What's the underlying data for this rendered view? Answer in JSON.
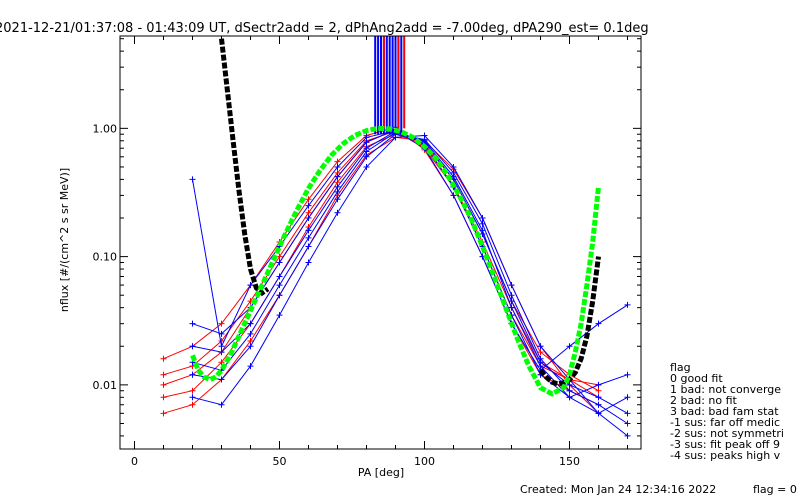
{
  "chart_data": {
    "type": "line",
    "title": "2021-12-21/01:37:08 - 01:43:09 UT, dSectr2add = 2, dPhAng2add = -7.00deg, dPA290_est=   0.1deg",
    "xlabel": "PA [deg]",
    "ylabel": "nflux [#/(cm^2 s sr MeV)]",
    "xlim": [
      -5,
      182
    ],
    "ylim": [
      0.0032,
      5.2
    ],
    "yscale": "log",
    "x_ticks": [
      0,
      50,
      100,
      150
    ],
    "x_tick_labels": [
      "0",
      "50",
      "100",
      "150"
    ],
    "y_ticks": [
      0.01,
      0.1,
      1.0
    ],
    "y_tick_labels": [
      "0.01",
      "0.10",
      "1.00"
    ],
    "colors": {
      "red": "#ff0000",
      "blue": "#0000ff",
      "green": "#00ff00",
      "black": "#000000"
    },
    "red_pa": [
      10,
      20,
      30,
      40,
      50,
      60,
      70,
      80,
      90,
      100,
      110,
      120,
      130,
      140,
      150,
      160
    ],
    "blue_pa": [
      20,
      30,
      40,
      50,
      60,
      70,
      80,
      90,
      100,
      110,
      120,
      130,
      140,
      150,
      160,
      170
    ],
    "red_curves": [
      [
        0.012,
        0.014,
        0.022,
        0.045,
        0.1,
        0.22,
        0.45,
        0.8,
        0.95,
        0.7,
        0.35,
        0.12,
        0.035,
        0.014,
        0.011,
        0.008
      ],
      [
        0.008,
        0.009,
        0.015,
        0.03,
        0.07,
        0.17,
        0.38,
        0.72,
        0.9,
        0.75,
        0.4,
        0.15,
        0.045,
        0.018,
        0.012,
        0.009
      ],
      [
        0.016,
        0.02,
        0.03,
        0.06,
        0.13,
        0.28,
        0.55,
        0.88,
        1.02,
        0.68,
        0.3,
        0.1,
        0.03,
        0.012,
        0.009,
        0.007
      ],
      [
        0.006,
        0.007,
        0.011,
        0.022,
        0.05,
        0.12,
        0.3,
        0.62,
        0.85,
        0.8,
        0.48,
        0.2,
        0.06,
        0.02,
        0.01,
        0.006
      ],
      [
        0.01,
        0.012,
        0.018,
        0.04,
        0.09,
        0.2,
        0.42,
        0.78,
        0.97,
        0.72,
        0.36,
        0.13,
        0.04,
        0.015,
        0.011,
        0.01
      ]
    ],
    "blue_curves": [
      [
        0.02,
        0.018,
        0.03,
        0.07,
        0.16,
        0.35,
        0.7,
        0.95,
        0.78,
        0.4,
        0.15,
        0.045,
        0.015,
        0.01,
        0.008,
        0.006
      ],
      [
        0.012,
        0.011,
        0.02,
        0.05,
        0.12,
        0.28,
        0.6,
        0.9,
        0.82,
        0.45,
        0.18,
        0.05,
        0.016,
        0.009,
        0.007,
        0.005
      ],
      [
        0.03,
        0.025,
        0.04,
        0.09,
        0.2,
        0.42,
        0.78,
        0.98,
        0.75,
        0.35,
        0.12,
        0.035,
        0.012,
        0.008,
        0.01,
        0.012
      ],
      [
        0.008,
        0.007,
        0.014,
        0.035,
        0.09,
        0.22,
        0.5,
        0.85,
        0.88,
        0.5,
        0.2,
        0.06,
        0.02,
        0.011,
        0.006,
        0.004
      ],
      [
        0.4,
        0.02,
        0.06,
        0.12,
        0.25,
        0.5,
        0.85,
        0.96,
        0.7,
        0.3,
        0.1,
        0.03,
        0.013,
        0.02,
        0.03,
        0.042
      ],
      [
        0.015,
        0.013,
        0.025,
        0.06,
        0.14,
        0.32,
        0.66,
        0.93,
        0.8,
        0.42,
        0.16,
        0.04,
        0.014,
        0.008,
        0.006,
        0.008
      ]
    ],
    "green_fit": {
      "pa": [
        20,
        22,
        24,
        26,
        28,
        30,
        33,
        36,
        40,
        44,
        48,
        52,
        56,
        60,
        64,
        68,
        72,
        76,
        80,
        84,
        88,
        92,
        96,
        100,
        104,
        108,
        112,
        116,
        120,
        124,
        128,
        132,
        136,
        140,
        144,
        148,
        150,
        152,
        154,
        156,
        158,
        160
      ],
      "values": [
        0.017,
        0.013,
        0.0115,
        0.011,
        0.0115,
        0.013,
        0.017,
        0.024,
        0.038,
        0.06,
        0.095,
        0.15,
        0.23,
        0.34,
        0.47,
        0.62,
        0.76,
        0.88,
        0.96,
        1.0,
        0.99,
        0.94,
        0.85,
        0.72,
        0.58,
        0.43,
        0.3,
        0.2,
        0.12,
        0.07,
        0.04,
        0.023,
        0.014,
        0.0095,
        0.0085,
        0.0095,
        0.012,
        0.018,
        0.03,
        0.06,
        0.13,
        0.35
      ]
    },
    "black_fit": {
      "pa": [
        30,
        32,
        34,
        36,
        38,
        40,
        42,
        44,
        46,
        140,
        142,
        144,
        146,
        148,
        150,
        152,
        154,
        156,
        158,
        160
      ],
      "values": [
        5.0,
        2.0,
        0.8,
        0.33,
        0.15,
        0.08,
        0.057,
        0.052,
        0.056,
        0.013,
        0.0115,
        0.0105,
        0.0102,
        0.0104,
        0.011,
        0.0125,
        0.016,
        0.024,
        0.045,
        0.1
      ]
    },
    "overflow_spikes": {
      "blue_pa": [
        83,
        84,
        85,
        86,
        87,
        88,
        89,
        90,
        91,
        92
      ],
      "red_pa": [
        86,
        91,
        93
      ]
    },
    "legend": {
      "title": "flag",
      "entries": [
        " 0 good fit",
        " 1 bad: not converge",
        " 2 bad: no fit",
        " 3 bad: bad fam stat",
        "-1 sus: far off medic",
        "-2 sus: not symmetri",
        "-3 sus: fit peak off 9",
        "-4 sus: peaks high v"
      ]
    },
    "footer": {
      "created": "Created: Mon Jan 24 12:34:16 2022",
      "flag": "flag = 0"
    }
  }
}
